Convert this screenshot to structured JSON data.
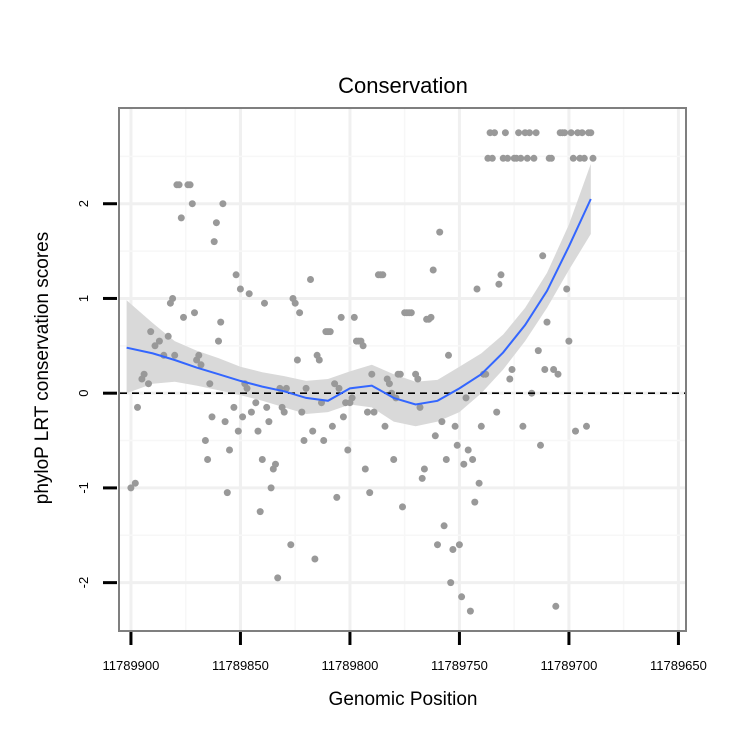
{
  "chart_data": {
    "type": "scatter",
    "title": "Conservation",
    "xlabel": "Genomic Position",
    "ylabel": "phyloP LRT conservation scores",
    "x_reversed": true,
    "xlim": [
      11789905,
      11789647
    ],
    "ylim": [
      -2.5,
      3.0
    ],
    "x_ticks": [
      11789900,
      11789850,
      11789800,
      11789750,
      11789700,
      11789650
    ],
    "x_tick_labels": [
      "11789900",
      "11789850",
      "11789800",
      "11789750",
      "11789700",
      "11789650"
    ],
    "y_ticks": [
      -2,
      -1,
      0,
      1,
      2
    ],
    "y_tick_labels": [
      "-2",
      "-1",
      "0",
      "1",
      "2"
    ],
    "reference_line": {
      "y": 0,
      "style": "dashed"
    },
    "colors": {
      "points": "#999999",
      "smooth": "#3366ff",
      "ribbon": "#d9d9d9",
      "frame": "#7f7f7f",
      "grid": "#f0f0f0"
    },
    "points": [
      [
        11789900,
        -1.0
      ],
      [
        11789898,
        -0.95
      ],
      [
        11789897,
        -0.15
      ],
      [
        11789895,
        0.15
      ],
      [
        11789894,
        0.2
      ],
      [
        11789892,
        0.1
      ],
      [
        11789891,
        0.65
      ],
      [
        11789889,
        0.5
      ],
      [
        11789887,
        0.55
      ],
      [
        11789885,
        0.4
      ],
      [
        11789883,
        0.6
      ],
      [
        11789882,
        0.95
      ],
      [
        11789881,
        1.0
      ],
      [
        11789880,
        0.4
      ],
      [
        11789879,
        2.2
      ],
      [
        11789878,
        2.2
      ],
      [
        11789877,
        1.85
      ],
      [
        11789876,
        0.8
      ],
      [
        11789874,
        2.2
      ],
      [
        11789873,
        2.2
      ],
      [
        11789872,
        2.0
      ],
      [
        11789871,
        0.85
      ],
      [
        11789870,
        0.35
      ],
      [
        11789869,
        0.4
      ],
      [
        11789868,
        0.3
      ],
      [
        11789866,
        -0.5
      ],
      [
        11789865,
        -0.7
      ],
      [
        11789864,
        0.1
      ],
      [
        11789863,
        -0.25
      ],
      [
        11789862,
        1.6
      ],
      [
        11789861,
        1.8
      ],
      [
        11789860,
        0.55
      ],
      [
        11789859,
        0.75
      ],
      [
        11789858,
        2.0
      ],
      [
        11789857,
        -0.3
      ],
      [
        11789856,
        -1.05
      ],
      [
        11789855,
        -0.6
      ],
      [
        11789853,
        -0.15
      ],
      [
        11789852,
        1.25
      ],
      [
        11789851,
        -0.4
      ],
      [
        11789850,
        1.1
      ],
      [
        11789849,
        -0.25
      ],
      [
        11789848,
        0.1
      ],
      [
        11789847,
        0.05
      ],
      [
        11789846,
        1.05
      ],
      [
        11789845,
        -0.2
      ],
      [
        11789843,
        -0.1
      ],
      [
        11789842,
        -0.4
      ],
      [
        11789841,
        -1.25
      ],
      [
        11789840,
        -0.7
      ],
      [
        11789839,
        0.95
      ],
      [
        11789838,
        -0.15
      ],
      [
        11789837,
        -0.3
      ],
      [
        11789836,
        -1.0
      ],
      [
        11789835,
        -0.8
      ],
      [
        11789834,
        -0.75
      ],
      [
        11789833,
        -1.95
      ],
      [
        11789832,
        0.05
      ],
      [
        11789831,
        -0.15
      ],
      [
        11789830,
        -0.2
      ],
      [
        11789829,
        0.05
      ],
      [
        11789827,
        -1.6
      ],
      [
        11789826,
        1.0
      ],
      [
        11789825,
        0.95
      ],
      [
        11789824,
        0.35
      ],
      [
        11789823,
        0.85
      ],
      [
        11789822,
        -0.2
      ],
      [
        11789821,
        -0.5
      ],
      [
        11789820,
        0.05
      ],
      [
        11789818,
        1.2
      ],
      [
        11789817,
        -0.4
      ],
      [
        11789816,
        -1.75
      ],
      [
        11789815,
        0.4
      ],
      [
        11789814,
        0.35
      ],
      [
        11789813,
        -0.1
      ],
      [
        11789812,
        -0.5
      ],
      [
        11789811,
        0.65
      ],
      [
        11789810,
        0.65
      ],
      [
        11789809,
        0.65
      ],
      [
        11789808,
        -0.35
      ],
      [
        11789807,
        0.1
      ],
      [
        11789806,
        -1.1
      ],
      [
        11789805,
        0.05
      ],
      [
        11789804,
        0.8
      ],
      [
        11789803,
        -0.25
      ],
      [
        11789802,
        -0.1
      ],
      [
        11789801,
        -0.6
      ],
      [
        11789800,
        -0.1
      ],
      [
        11789799,
        -0.05
      ],
      [
        11789798,
        0.8
      ],
      [
        11789797,
        0.55
      ],
      [
        11789796,
        0.55
      ],
      [
        11789795,
        0.55
      ],
      [
        11789794,
        0.5
      ],
      [
        11789793,
        -0.8
      ],
      [
        11789792,
        -0.2
      ],
      [
        11789791,
        -1.05
      ],
      [
        11789790,
        0.2
      ],
      [
        11789789,
        -0.2
      ],
      [
        11789787,
        1.25
      ],
      [
        11789786,
        1.25
      ],
      [
        11789785,
        1.25
      ],
      [
        11789784,
        -0.35
      ],
      [
        11789783,
        0.15
      ],
      [
        11789782,
        0.1
      ],
      [
        11789781,
        0.0
      ],
      [
        11789780,
        -0.7
      ],
      [
        11789779,
        -0.05
      ],
      [
        11789778,
        0.2
      ],
      [
        11789777,
        0.2
      ],
      [
        11789776,
        -1.2
      ],
      [
        11789775,
        0.85
      ],
      [
        11789774,
        0.85
      ],
      [
        11789773,
        0.85
      ],
      [
        11789772,
        0.85
      ],
      [
        11789770,
        0.2
      ],
      [
        11789769,
        0.15
      ],
      [
        11789768,
        -0.15
      ],
      [
        11789767,
        -0.9
      ],
      [
        11789766,
        -0.8
      ],
      [
        11789765,
        0.78
      ],
      [
        11789764,
        0.78
      ],
      [
        11789763,
        0.8
      ],
      [
        11789762,
        1.3
      ],
      [
        11789761,
        -0.45
      ],
      [
        11789760,
        -1.6
      ],
      [
        11789759,
        1.7
      ],
      [
        11789758,
        -0.3
      ],
      [
        11789757,
        -1.4
      ],
      [
        11789756,
        -0.7
      ],
      [
        11789755,
        0.4
      ],
      [
        11789754,
        -2.0
      ],
      [
        11789753,
        -1.65
      ],
      [
        11789752,
        -0.35
      ],
      [
        11789751,
        -0.55
      ],
      [
        11789750,
        -1.6
      ],
      [
        11789749,
        -2.15
      ],
      [
        11789748,
        -0.75
      ],
      [
        11789747,
        -0.05
      ],
      [
        11789746,
        -0.6
      ],
      [
        11789745,
        -2.3
      ],
      [
        11789744,
        -0.7
      ],
      [
        11789743,
        -1.15
      ],
      [
        11789742,
        1.1
      ],
      [
        11789741,
        -0.95
      ],
      [
        11789740,
        -0.35
      ],
      [
        11789739,
        0.2
      ],
      [
        11789738,
        0.2
      ],
      [
        11789737,
        2.48
      ],
      [
        11789736,
        2.75
      ],
      [
        11789735,
        2.48
      ],
      [
        11789734,
        2.75
      ],
      [
        11789733,
        -0.2
      ],
      [
        11789732,
        1.15
      ],
      [
        11789731,
        1.25
      ],
      [
        11789730,
        2.48
      ],
      [
        11789729,
        2.75
      ],
      [
        11789728,
        2.48
      ],
      [
        11789727,
        0.15
      ],
      [
        11789726,
        0.25
      ],
      [
        11789725,
        2.48
      ],
      [
        11789724,
        2.48
      ],
      [
        11789723,
        2.75
      ],
      [
        11789722,
        2.48
      ],
      [
        11789721,
        -0.35
      ],
      [
        11789720,
        2.75
      ],
      [
        11789719,
        2.48
      ],
      [
        11789718,
        2.75
      ],
      [
        11789717,
        0.0
      ],
      [
        11789716,
        2.48
      ],
      [
        11789715,
        2.75
      ],
      [
        11789714,
        0.45
      ],
      [
        11789713,
        -0.55
      ],
      [
        11789712,
        1.45
      ],
      [
        11789711,
        0.25
      ],
      [
        11789710,
        0.75
      ],
      [
        11789709,
        2.48
      ],
      [
        11789708,
        2.48
      ],
      [
        11789707,
        0.25
      ],
      [
        11789706,
        -2.25
      ],
      [
        11789705,
        0.2
      ],
      [
        11789704,
        2.75
      ],
      [
        11789703,
        2.75
      ],
      [
        11789702,
        2.75
      ],
      [
        11789701,
        1.1
      ],
      [
        11789700,
        0.55
      ],
      [
        11789699,
        2.75
      ],
      [
        11789698,
        2.48
      ],
      [
        11789697,
        -0.4
      ],
      [
        11789696,
        2.75
      ],
      [
        11789695,
        2.48
      ],
      [
        11789694,
        2.75
      ],
      [
        11789693,
        2.48
      ],
      [
        11789692,
        -0.35
      ],
      [
        11789691,
        2.75
      ],
      [
        11789690,
        2.75
      ],
      [
        11789689,
        2.48
      ]
    ],
    "smooth_fit": {
      "x": [
        11789902,
        11789890,
        11789880,
        11789870,
        11789860,
        11789850,
        11789840,
        11789830,
        11789820,
        11789810,
        11789800,
        11789790,
        11789780,
        11789770,
        11789760,
        11789750,
        11789740,
        11789730,
        11789720,
        11789710,
        11789700,
        11789690
      ],
      "y": [
        0.48,
        0.42,
        0.35,
        0.27,
        0.2,
        0.13,
        0.07,
        0.02,
        -0.05,
        -0.08,
        0.05,
        0.08,
        -0.05,
        -0.12,
        -0.08,
        0.05,
        0.2,
        0.43,
        0.72,
        1.08,
        1.55,
        2.05
      ],
      "lower": [
        0.0,
        0.1,
        0.12,
        0.08,
        0.03,
        -0.02,
        -0.08,
        -0.15,
        -0.22,
        -0.2,
        -0.12,
        -0.15,
        -0.3,
        -0.35,
        -0.3,
        -0.2,
        0.0,
        0.25,
        0.55,
        0.9,
        1.3,
        1.68
      ],
      "upper": [
        0.98,
        0.74,
        0.55,
        0.45,
        0.37,
        0.28,
        0.22,
        0.18,
        0.13,
        0.15,
        0.23,
        0.3,
        0.2,
        0.12,
        0.14,
        0.28,
        0.42,
        0.62,
        0.9,
        1.27,
        1.78,
        2.42
      ]
    }
  }
}
